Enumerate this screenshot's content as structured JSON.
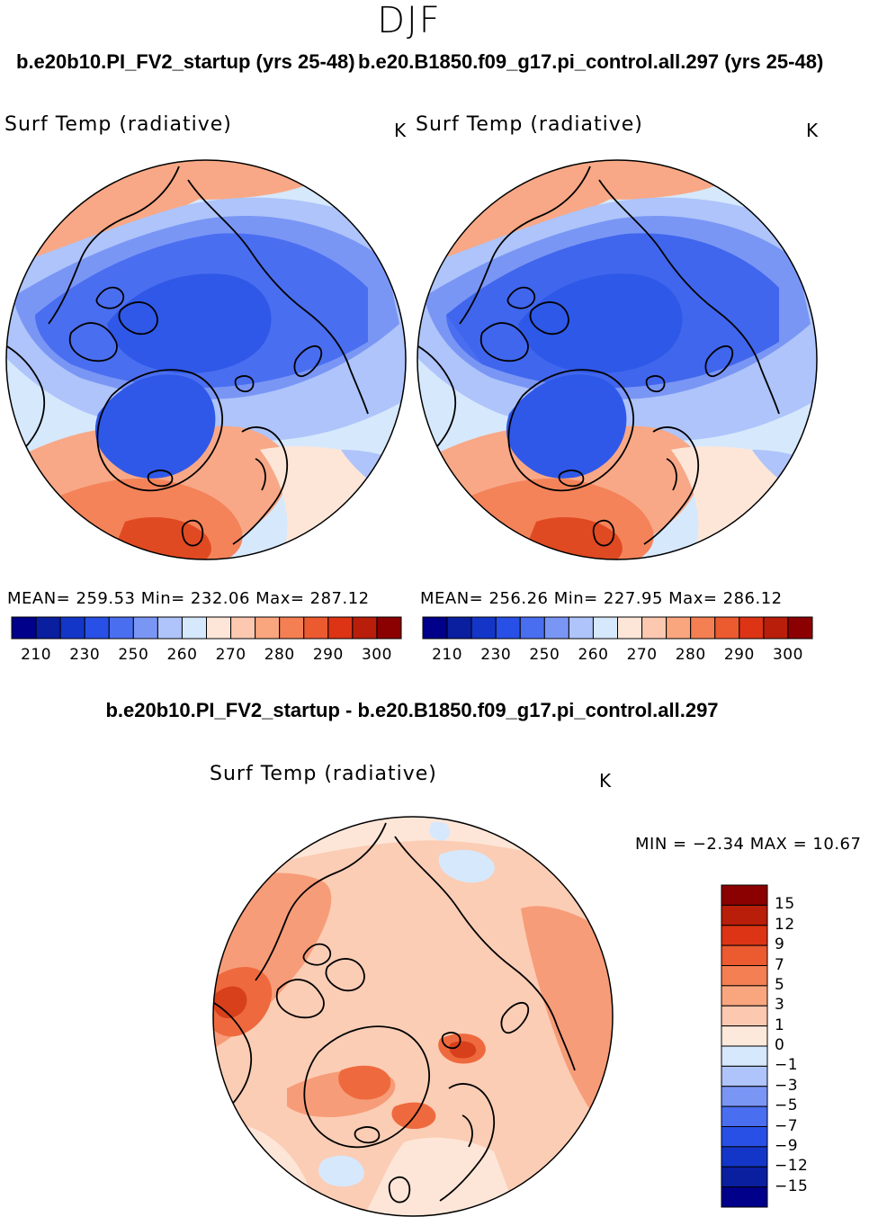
{
  "season": "DJF",
  "panels": [
    {
      "case_title": "b.e20b10.PI_FV2_startup (yrs 25-48)",
      "variable": "Surf Temp (radiative)",
      "units": "K",
      "stats": "MEAN= 259.53   Min= 232.06   Max= 287.12"
    },
    {
      "case_title": "b.e20.B1850.f09_g17.pi_control.all.297 (yrs 25-48)",
      "variable": "Surf Temp (radiative)",
      "units": "K",
      "stats": "MEAN= 256.26   Min= 227.95   Max= 286.12"
    }
  ],
  "abs_colorbar": {
    "labels": [
      "210",
      "230",
      "250",
      "260",
      "270",
      "280",
      "290",
      "300"
    ],
    "colors": [
      "#00008b",
      "#0a1ea0",
      "#1436c8",
      "#2850e6",
      "#4a6ef0",
      "#7a96f5",
      "#aec4fa",
      "#d6e8fc",
      "#fde6d8",
      "#fcc8b0",
      "#f9a67f",
      "#f47f52",
      "#ec5a30",
      "#dc3414",
      "#b81e0a",
      "#8b0000"
    ]
  },
  "difference": {
    "title": "b.e20b10.PI_FV2_startup - b.e20.B1850.f09_g17.pi_control.all.297",
    "variable": "Surf Temp (radiative)",
    "units": "K",
    "minmax": "MIN =   −2.34  MAX =   10.67",
    "colorbar": {
      "labels": [
        "15",
        "12",
        "9",
        "7",
        "5",
        "3",
        "1",
        "0",
        "−1",
        "−3",
        "−5",
        "−7",
        "−9",
        "−12",
        "−15"
      ],
      "colors_top_to_bottom": [
        "#8b0000",
        "#b81e0a",
        "#dc3414",
        "#ec5a30",
        "#f47f52",
        "#f9a67f",
        "#fcc8b0",
        "#fde9dc",
        "#d6e8fc",
        "#aec4fa",
        "#7a96f5",
        "#4a6ef0",
        "#2850e6",
        "#1436c8",
        "#0a1ea0",
        "#00008b"
      ]
    }
  },
  "map_colors": {
    "warm_deep": "#e04a22",
    "warm_mid": "#f4835a",
    "warm_light": "#f8a886",
    "warm_pale": "#fcd0b8",
    "cream": "#fde6d8",
    "cool_pale": "#d6e8fc",
    "cool_light": "#aec4fa",
    "cool_mid": "#7a96f5",
    "cool_deep": "#4a6ef0",
    "cool_darker": "#2f58e8",
    "diff_base": "#fbcdb5",
    "diff_light": "#fde6d8",
    "diff_mid": "#f79c78",
    "diff_strong": "#ee6a3e",
    "diff_hot": "#d8401c",
    "diff_cool": "#d6e8fc"
  }
}
